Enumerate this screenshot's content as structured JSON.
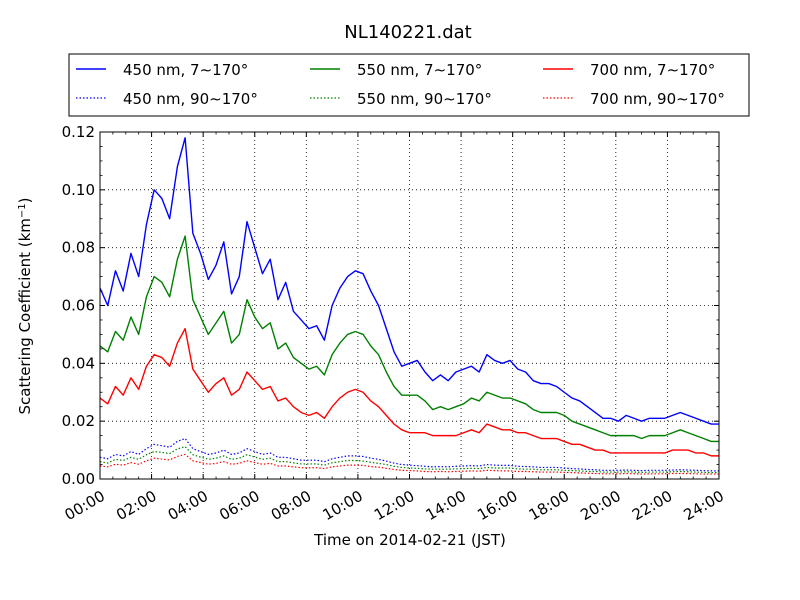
{
  "chart_data": {
    "type": "line",
    "title": "NL140221.dat",
    "xlabel": "Time on 2014-02-21 (JST)",
    "ylabel_main": "Scattering Coefficient (km",
    "ylabel_sup": "−1",
    "ylabel_end": ")",
    "x_unit": "hours",
    "xlim": [
      0,
      24
    ],
    "ylim": [
      0,
      0.12
    ],
    "grid": true,
    "legend": "top",
    "x_ticks": [
      {
        "v": 0,
        "label": "00:00"
      },
      {
        "v": 2,
        "label": "02:00"
      },
      {
        "v": 4,
        "label": "04:00"
      },
      {
        "v": 6,
        "label": "06:00"
      },
      {
        "v": 8,
        "label": "08:00"
      },
      {
        "v": 10,
        "label": "10:00"
      },
      {
        "v": 12,
        "label": "12:00"
      },
      {
        "v": 14,
        "label": "14:00"
      },
      {
        "v": 16,
        "label": "16:00"
      },
      {
        "v": 18,
        "label": "18:00"
      },
      {
        "v": 20,
        "label": "20:00"
      },
      {
        "v": 22,
        "label": "22:00"
      },
      {
        "v": 24,
        "label": "24:00"
      }
    ],
    "y_ticks": [
      {
        "v": 0.0,
        "label": "0.00"
      },
      {
        "v": 0.02,
        "label": "0.02"
      },
      {
        "v": 0.04,
        "label": "0.04"
      },
      {
        "v": 0.06,
        "label": "0.06"
      },
      {
        "v": 0.08,
        "label": "0.08"
      },
      {
        "v": 0.1,
        "label": "0.10"
      },
      {
        "v": 0.12,
        "label": "0.12"
      }
    ],
    "x": [
      0,
      0.3,
      0.6,
      0.9,
      1.2,
      1.5,
      1.8,
      2.1,
      2.4,
      2.7,
      3.0,
      3.3,
      3.6,
      3.9,
      4.2,
      4.5,
      4.8,
      5.1,
      5.4,
      5.7,
      6.0,
      6.3,
      6.6,
      6.9,
      7.2,
      7.5,
      7.8,
      8.1,
      8.4,
      8.7,
      9.0,
      9.3,
      9.6,
      9.9,
      10.2,
      10.5,
      10.8,
      11.1,
      11.4,
      11.7,
      12.0,
      12.3,
      12.6,
      12.9,
      13.2,
      13.5,
      13.8,
      14.1,
      14.4,
      14.7,
      15.0,
      15.3,
      15.6,
      15.9,
      16.2,
      16.5,
      16.8,
      17.1,
      17.4,
      17.7,
      18.0,
      18.3,
      18.6,
      18.9,
      19.2,
      19.5,
      19.8,
      20.1,
      20.4,
      20.7,
      21.0,
      21.3,
      21.6,
      21.9,
      22.2,
      22.5,
      22.8,
      23.1,
      23.4,
      23.7,
      24.0
    ],
    "series": [
      {
        "name": "450 nm, 7∼170°",
        "color": "#0000ff",
        "style": "solid",
        "width": 1.4,
        "values": [
          0.066,
          0.06,
          0.072,
          0.065,
          0.078,
          0.07,
          0.088,
          0.1,
          0.097,
          0.09,
          0.108,
          0.118,
          0.085,
          0.078,
          0.069,
          0.074,
          0.082,
          0.064,
          0.07,
          0.089,
          0.08,
          0.071,
          0.076,
          0.062,
          0.068,
          0.058,
          0.055,
          0.052,
          0.053,
          0.048,
          0.06,
          0.066,
          0.07,
          0.072,
          0.071,
          0.065,
          0.06,
          0.052,
          0.044,
          0.039,
          0.04,
          0.041,
          0.037,
          0.034,
          0.036,
          0.034,
          0.037,
          0.038,
          0.039,
          0.037,
          0.043,
          0.041,
          0.04,
          0.041,
          0.038,
          0.037,
          0.034,
          0.033,
          0.033,
          0.032,
          0.03,
          0.028,
          0.027,
          0.025,
          0.023,
          0.021,
          0.021,
          0.02,
          0.022,
          0.021,
          0.02,
          0.021,
          0.021,
          0.021,
          0.022,
          0.023,
          0.022,
          0.021,
          0.02,
          0.019,
          0.019
        ]
      },
      {
        "name": "550 nm, 7∼170°",
        "color": "#008000",
        "style": "solid",
        "width": 1.4,
        "values": [
          0.046,
          0.044,
          0.051,
          0.048,
          0.056,
          0.05,
          0.063,
          0.07,
          0.068,
          0.063,
          0.076,
          0.084,
          0.062,
          0.056,
          0.05,
          0.054,
          0.058,
          0.047,
          0.05,
          0.062,
          0.056,
          0.052,
          0.054,
          0.045,
          0.047,
          0.042,
          0.04,
          0.038,
          0.039,
          0.036,
          0.043,
          0.047,
          0.05,
          0.051,
          0.05,
          0.046,
          0.043,
          0.037,
          0.032,
          0.029,
          0.029,
          0.029,
          0.027,
          0.024,
          0.025,
          0.024,
          0.025,
          0.026,
          0.028,
          0.027,
          0.03,
          0.029,
          0.028,
          0.028,
          0.027,
          0.026,
          0.024,
          0.023,
          0.023,
          0.023,
          0.022,
          0.02,
          0.019,
          0.018,
          0.017,
          0.016,
          0.015,
          0.015,
          0.015,
          0.015,
          0.014,
          0.015,
          0.015,
          0.015,
          0.016,
          0.017,
          0.016,
          0.015,
          0.014,
          0.013,
          0.013
        ]
      },
      {
        "name": "700 nm, 7∼170°",
        "color": "#ff0000",
        "style": "solid",
        "width": 1.4,
        "values": [
          0.028,
          0.026,
          0.032,
          0.029,
          0.035,
          0.031,
          0.039,
          0.043,
          0.042,
          0.039,
          0.047,
          0.052,
          0.038,
          0.034,
          0.03,
          0.033,
          0.035,
          0.029,
          0.031,
          0.037,
          0.034,
          0.031,
          0.032,
          0.027,
          0.028,
          0.025,
          0.023,
          0.022,
          0.023,
          0.021,
          0.025,
          0.028,
          0.03,
          0.031,
          0.03,
          0.027,
          0.025,
          0.022,
          0.019,
          0.017,
          0.016,
          0.016,
          0.016,
          0.015,
          0.015,
          0.015,
          0.015,
          0.016,
          0.017,
          0.016,
          0.019,
          0.018,
          0.017,
          0.017,
          0.016,
          0.016,
          0.015,
          0.014,
          0.014,
          0.014,
          0.013,
          0.012,
          0.012,
          0.011,
          0.01,
          0.01,
          0.009,
          0.009,
          0.009,
          0.009,
          0.009,
          0.009,
          0.009,
          0.009,
          0.01,
          0.01,
          0.01,
          0.009,
          0.009,
          0.008,
          0.008
        ]
      },
      {
        "name": "450 nm, 90∼170°",
        "color": "#0000ff",
        "style": "dotted",
        "width": 1.2,
        "values": [
          0.0075,
          0.007,
          0.0085,
          0.008,
          0.0095,
          0.0085,
          0.0105,
          0.012,
          0.0115,
          0.011,
          0.013,
          0.014,
          0.0105,
          0.0095,
          0.0085,
          0.009,
          0.01,
          0.0085,
          0.009,
          0.0105,
          0.0095,
          0.0085,
          0.009,
          0.0075,
          0.0075,
          0.007,
          0.0065,
          0.0065,
          0.0065,
          0.006,
          0.007,
          0.0075,
          0.008,
          0.008,
          0.0078,
          0.0072,
          0.0068,
          0.0062,
          0.0055,
          0.005,
          0.0048,
          0.0046,
          0.0044,
          0.0042,
          0.0043,
          0.0042,
          0.0044,
          0.0045,
          0.0046,
          0.0045,
          0.005,
          0.0048,
          0.0047,
          0.0047,
          0.0044,
          0.0043,
          0.0042,
          0.004,
          0.004,
          0.004,
          0.0038,
          0.0036,
          0.0035,
          0.0033,
          0.0032,
          0.003,
          0.003,
          0.003,
          0.0031,
          0.003,
          0.0029,
          0.003,
          0.003,
          0.003,
          0.0031,
          0.0032,
          0.0031,
          0.003,
          0.0029,
          0.0028,
          0.0028
        ]
      },
      {
        "name": "550 nm, 90∼170°",
        "color": "#008000",
        "style": "dotted",
        "width": 1.2,
        "values": [
          0.006,
          0.0055,
          0.0068,
          0.0064,
          0.0075,
          0.0068,
          0.0084,
          0.0095,
          0.0092,
          0.0088,
          0.0104,
          0.0112,
          0.0084,
          0.0076,
          0.0068,
          0.0072,
          0.008,
          0.0068,
          0.0072,
          0.0084,
          0.0076,
          0.0068,
          0.0072,
          0.006,
          0.006,
          0.0056,
          0.0052,
          0.0052,
          0.0052,
          0.0048,
          0.0056,
          0.006,
          0.0064,
          0.0064,
          0.0062,
          0.0058,
          0.0054,
          0.005,
          0.0044,
          0.004,
          0.0038,
          0.0037,
          0.0035,
          0.0034,
          0.0034,
          0.0034,
          0.0035,
          0.0036,
          0.0037,
          0.0036,
          0.004,
          0.0038,
          0.0038,
          0.0038,
          0.0035,
          0.0034,
          0.0034,
          0.0032,
          0.0032,
          0.0032,
          0.003,
          0.0029,
          0.0028,
          0.0026,
          0.0026,
          0.0024,
          0.0024,
          0.0024,
          0.0025,
          0.0024,
          0.0023,
          0.0024,
          0.0024,
          0.0024,
          0.0025,
          0.0026,
          0.0025,
          0.0024,
          0.0023,
          0.0022,
          0.0022
        ]
      },
      {
        "name": "700 nm, 90∼170°",
        "color": "#ff0000",
        "style": "dotted",
        "width": 1.2,
        "values": [
          0.0045,
          0.0042,
          0.0051,
          0.0048,
          0.0057,
          0.0051,
          0.0063,
          0.0072,
          0.0069,
          0.0066,
          0.0078,
          0.0085,
          0.0063,
          0.0057,
          0.0051,
          0.0054,
          0.006,
          0.0051,
          0.0054,
          0.0063,
          0.0057,
          0.0051,
          0.0054,
          0.0045,
          0.0045,
          0.0042,
          0.0039,
          0.0039,
          0.0039,
          0.0036,
          0.0042,
          0.0045,
          0.0048,
          0.0048,
          0.0047,
          0.0043,
          0.0041,
          0.0037,
          0.0033,
          0.003,
          0.0029,
          0.0028,
          0.0026,
          0.0025,
          0.0026,
          0.0025,
          0.0026,
          0.0027,
          0.0028,
          0.0027,
          0.003,
          0.0029,
          0.0028,
          0.0028,
          0.0026,
          0.0026,
          0.0025,
          0.0024,
          0.0024,
          0.0024,
          0.0023,
          0.0022,
          0.0021,
          0.002,
          0.0019,
          0.0018,
          0.0018,
          0.0018,
          0.0019,
          0.0018,
          0.0017,
          0.0018,
          0.0018,
          0.0018,
          0.0019,
          0.0019,
          0.0019,
          0.0018,
          0.0017,
          0.0017,
          0.0017
        ]
      }
    ]
  }
}
